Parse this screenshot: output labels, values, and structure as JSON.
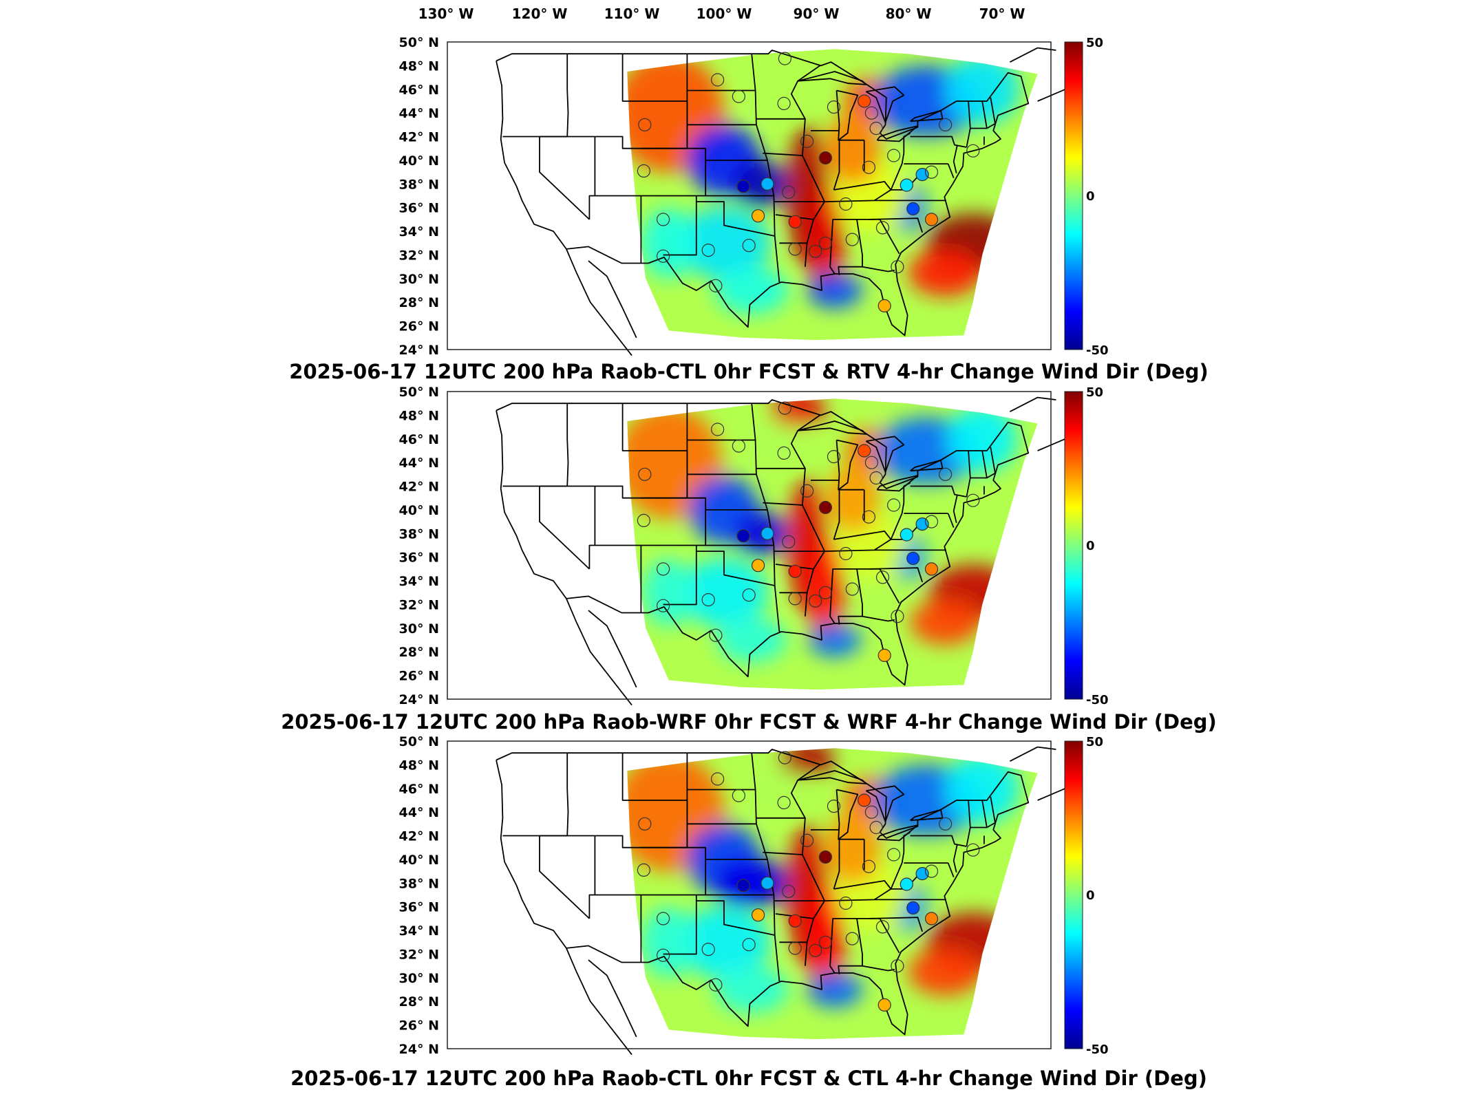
{
  "lon_labels": [
    "130° W",
    "120° W",
    "110° W",
    "100° W",
    "90° W",
    "80° W",
    "70° W"
  ],
  "lat_labels": [
    "50° N",
    "48° N",
    "46° N",
    "44° N",
    "42° N",
    "40° N",
    "38° N",
    "36° N",
    "34° N",
    "32° N",
    "30° N",
    "28° N",
    "26° N",
    "24° N"
  ],
  "colorbar": {
    "ticks": [
      "50",
      "0",
      "-50"
    ],
    "range": [
      -50,
      50
    ],
    "colors": [
      "#00008f",
      "#0000ff",
      "#0080ff",
      "#00ffff",
      "#80ff80",
      "#ffff00",
      "#ff8000",
      "#ff0000",
      "#800000"
    ]
  },
  "panels": [
    {
      "title": "2025-06-17 12UTC 200 hPa Raob-CTL 0hr FCST & RTV 4-hr Change Wind Dir (Deg)"
    },
    {
      "title": "2025-06-17 12UTC 200 hPa Raob-WRF 0hr FCST & WRF 4-hr Change Wind Dir (Deg)"
    },
    {
      "title": "2025-06-17 12UTC 200 hPa Raob-CTL 0hr FCST & CTL 4-hr Change Wind Dir (Deg)"
    }
  ],
  "stations": [
    {
      "lon": -100.7,
      "lat": 46.8,
      "v": 0
    },
    {
      "lon": -98.4,
      "lat": 45.4,
      "v": 0
    },
    {
      "lon": -93.5,
      "lat": 44.8,
      "v": 0
    },
    {
      "lon": -93.4,
      "lat": 48.6,
      "v": 0
    },
    {
      "lon": -108.6,
      "lat": 43.0,
      "v": 0
    },
    {
      "lon": -108.7,
      "lat": 39.1,
      "v": 0
    },
    {
      "lon": -97.9,
      "lat": 37.8,
      "v": -45
    },
    {
      "lon": -95.3,
      "lat": 38.0,
      "v": -20
    },
    {
      "lon": -91.0,
      "lat": 41.6,
      "v": 5
    },
    {
      "lon": -89.0,
      "lat": 40.2,
      "v": 50
    },
    {
      "lon": -93.0,
      "lat": 37.3,
      "v": 0
    },
    {
      "lon": -96.3,
      "lat": 35.3,
      "v": 20
    },
    {
      "lon": -92.3,
      "lat": 34.8,
      "v": 35
    },
    {
      "lon": -86.8,
      "lat": 36.3,
      "v": 0
    },
    {
      "lon": -84.3,
      "lat": 39.4,
      "v": 0
    },
    {
      "lon": -81.6,
      "lat": 40.4,
      "v": 0
    },
    {
      "lon": -80.2,
      "lat": 37.9,
      "v": -15
    },
    {
      "lon": -78.5,
      "lat": 38.8,
      "v": -20
    },
    {
      "lon": -77.5,
      "lat": 39.0,
      "v": 0
    },
    {
      "lon": -79.5,
      "lat": 35.9,
      "v": -30
    },
    {
      "lon": -77.5,
      "lat": 35.0,
      "v": 25
    },
    {
      "lon": -82.8,
      "lat": 34.3,
      "v": 0
    },
    {
      "lon": -86.1,
      "lat": 33.3,
      "v": 0
    },
    {
      "lon": -89.0,
      "lat": 33.0,
      "v": 0
    },
    {
      "lon": -90.1,
      "lat": 32.3,
      "v": 0
    },
    {
      "lon": -92.3,
      "lat": 32.5,
      "v": 0
    },
    {
      "lon": -97.3,
      "lat": 32.8,
      "v": 0
    },
    {
      "lon": -101.7,
      "lat": 32.4,
      "v": 0
    },
    {
      "lon": -106.6,
      "lat": 31.9,
      "v": 0
    },
    {
      "lon": -106.6,
      "lat": 35.0,
      "v": 0
    },
    {
      "lon": -100.9,
      "lat": 29.4,
      "v": 0
    },
    {
      "lon": -81.2,
      "lat": 31.0,
      "v": 0
    },
    {
      "lon": -82.6,
      "lat": 27.7,
      "v": 20
    },
    {
      "lon": -84.8,
      "lat": 45.0,
      "v": 30
    },
    {
      "lon": -83.5,
      "lat": 42.7,
      "v": 0
    },
    {
      "lon": -76.0,
      "lat": 43.0,
      "v": 0
    },
    {
      "lon": -73.0,
      "lat": 40.8,
      "v": 0
    },
    {
      "lon": -88.1,
      "lat": 44.5,
      "v": 0
    },
    {
      "lon": -84.0,
      "lat": 44.0,
      "v": 0
    }
  ]
}
